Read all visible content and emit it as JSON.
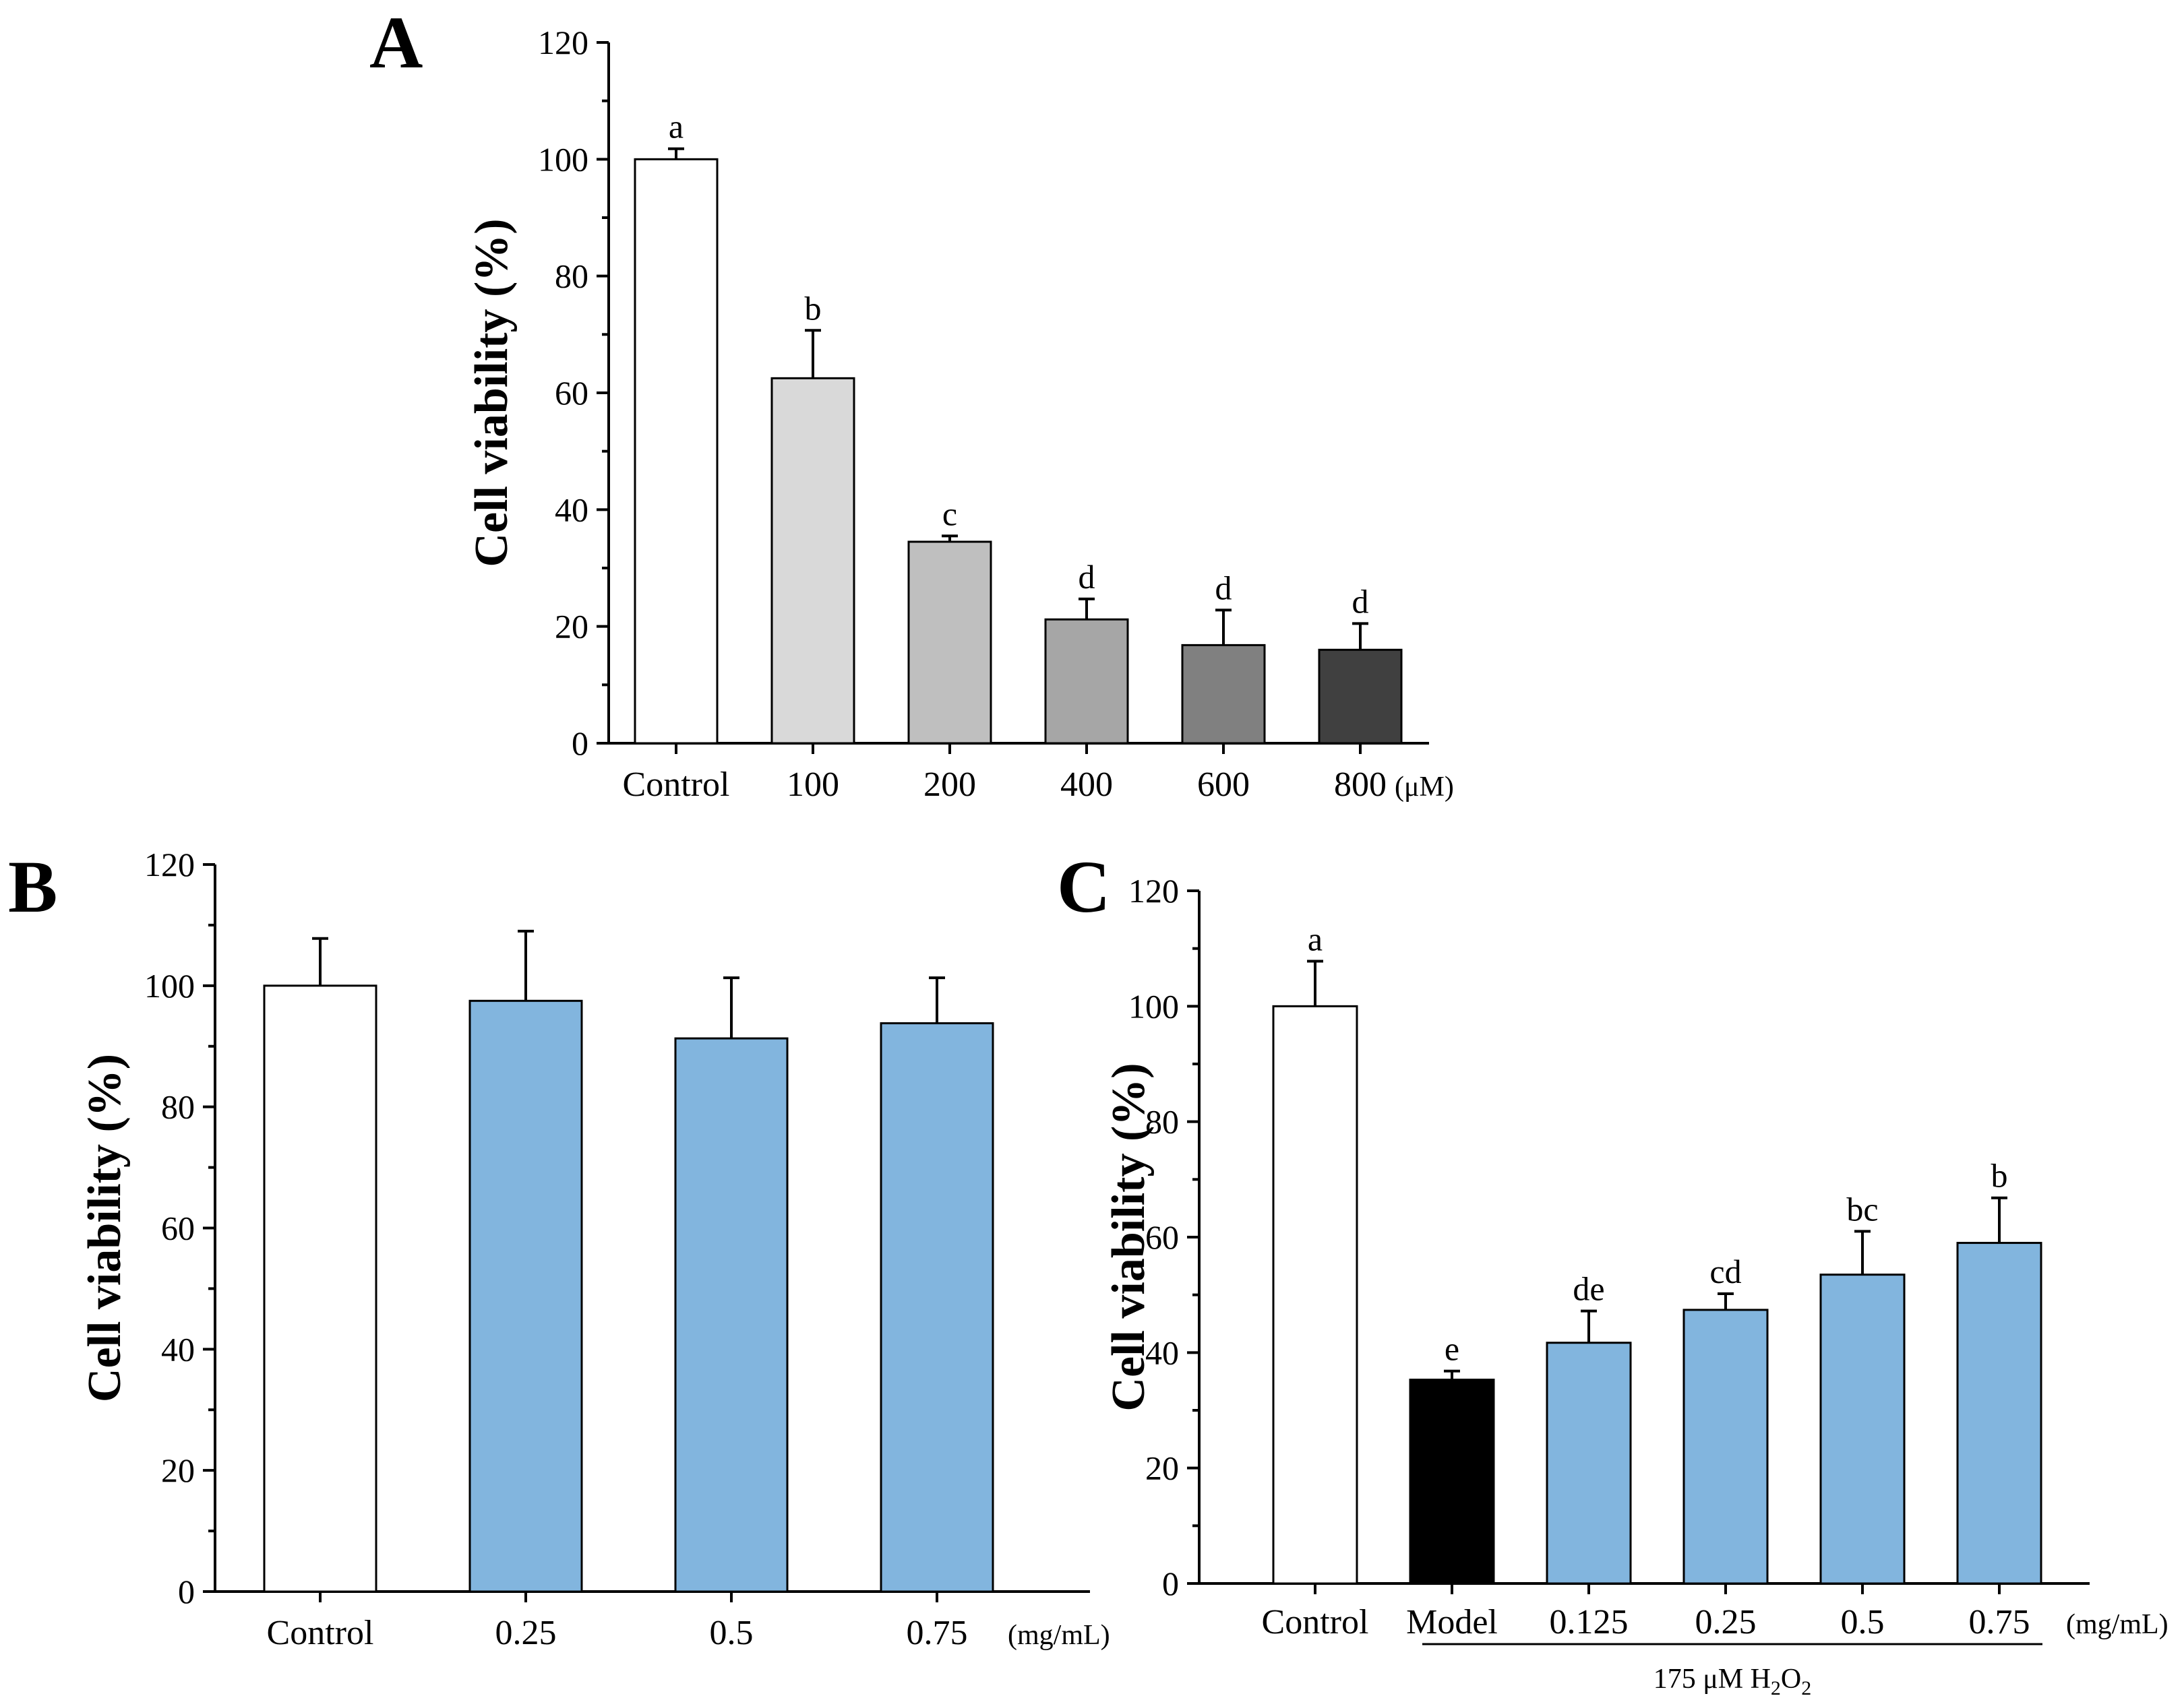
{
  "chart_data": [
    {
      "panel": "A",
      "type": "bar",
      "ylabel": "Cell viability (%)",
      "unit": "(μM)",
      "ylim": [
        0,
        120
      ],
      "yticks": [
        0,
        20,
        40,
        60,
        80,
        100,
        120
      ],
      "categories": [
        "Control",
        "100",
        "200",
        "400",
        "600",
        "800"
      ],
      "values": [
        100,
        62.5,
        34.5,
        21.2,
        16.8,
        16.0
      ],
      "errors": [
        1.8,
        8.2,
        1.0,
        3.5,
        6.0,
        4.5
      ],
      "sig_labels": [
        "a",
        "b",
        "c",
        "d",
        "d",
        "d"
      ],
      "colors": [
        "#ffffff",
        "#d9d9d9",
        "#bfbfbf",
        "#a6a6a6",
        "#808080",
        "#404040"
      ]
    },
    {
      "panel": "B",
      "type": "bar",
      "ylabel": "Cell viability (%)",
      "unit": "(mg/mL)",
      "ylim": [
        0,
        120
      ],
      "yticks": [
        0,
        20,
        40,
        60,
        80,
        100,
        120
      ],
      "categories": [
        "Control",
        "0.25",
        "0.5",
        "0.75"
      ],
      "values": [
        100,
        97.5,
        91.3,
        93.8
      ],
      "errors": [
        7.8,
        11.5,
        10.0,
        7.5
      ],
      "sig_labels": [],
      "colors": [
        "#ffffff",
        "#82b5de",
        "#82b5de",
        "#82b5de"
      ]
    },
    {
      "panel": "C",
      "type": "bar",
      "ylabel": "Cell viability (%)",
      "unit": "(mg/mL)",
      "group_label_prefix": "175 μM H",
      "group_label_mid": "O",
      "group_label_sub": "2",
      "ylim": [
        0,
        120
      ],
      "yticks": [
        0,
        20,
        40,
        60,
        80,
        100,
        120
      ],
      "categories": [
        "Control",
        "Model",
        "0.125",
        "0.25",
        "0.5",
        "0.75"
      ],
      "values": [
        100,
        35.3,
        41.7,
        47.4,
        53.5,
        59.0
      ],
      "errors": [
        7.8,
        1.5,
        5.5,
        2.8,
        7.5,
        7.8
      ],
      "sig_labels": [
        "a",
        "e",
        "de",
        "cd",
        "bc",
        "b"
      ],
      "colors": [
        "#ffffff",
        "#000000",
        "#82b5de",
        "#82b5de",
        "#82b5de",
        "#82b5de"
      ]
    }
  ]
}
